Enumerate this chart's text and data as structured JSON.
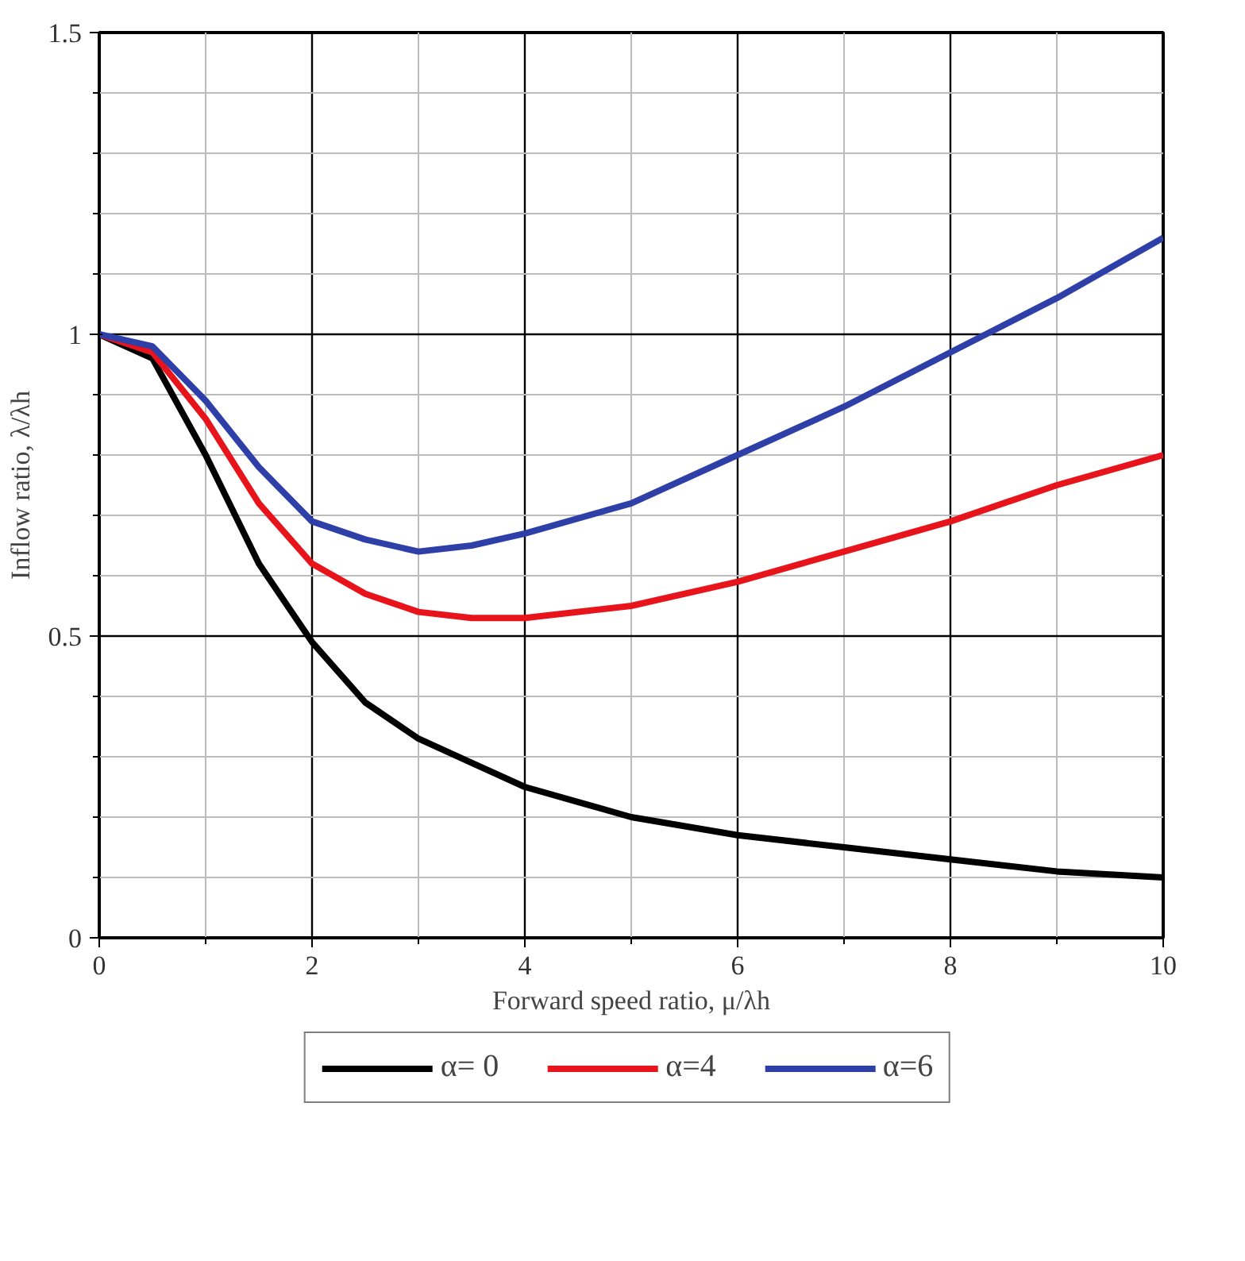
{
  "chart_data": {
    "type": "line",
    "xlabel": "Forward speed ratio, μ/λh",
    "ylabel": "Inflow ratio, λ/λh",
    "x": [
      0,
      0.5,
      1,
      1.5,
      2,
      2.5,
      3,
      3.5,
      4,
      5,
      6,
      7,
      8,
      9,
      10
    ],
    "series": [
      {
        "name": "α= 0",
        "color": "#000000",
        "values": [
          1.0,
          0.96,
          0.8,
          0.62,
          0.49,
          0.39,
          0.33,
          0.29,
          0.25,
          0.2,
          0.17,
          0.15,
          0.13,
          0.11,
          0.1
        ]
      },
      {
        "name": "α=4",
        "color": "#e8141c",
        "values": [
          1.0,
          0.97,
          0.86,
          0.72,
          0.62,
          0.57,
          0.54,
          0.53,
          0.53,
          0.55,
          0.59,
          0.64,
          0.69,
          0.75,
          0.8
        ]
      },
      {
        "name": "α=6",
        "color": "#2e3fa8",
        "values": [
          1.0,
          0.98,
          0.89,
          0.78,
          0.69,
          0.66,
          0.64,
          0.65,
          0.67,
          0.72,
          0.8,
          0.88,
          0.97,
          1.06,
          1.16
        ]
      }
    ],
    "xlim": [
      0,
      10
    ],
    "xticks": [
      0,
      {
        "value": 1,
        "label": null
      },
      2,
      {
        "value": 3,
        "label": null
      },
      4,
      {
        "value": 5,
        "label": null
      },
      6,
      {
        "value": 7,
        "label": null
      },
      8,
      {
        "value": 9,
        "label": null
      },
      10
    ],
    "ylim": [
      0,
      1.5
    ],
    "yticks": [
      0,
      {
        "value": 0.1,
        "label": null
      },
      {
        "value": 0.2,
        "label": null
      },
      {
        "value": 0.3,
        "label": null
      },
      {
        "value": 0.4,
        "label": null
      },
      0.5,
      {
        "value": 0.6,
        "label": null
      },
      {
        "value": 0.7,
        "label": null
      },
      {
        "value": 0.8,
        "label": null
      },
      {
        "value": 0.9,
        "label": null
      },
      1,
      {
        "value": 1.1,
        "label": null
      },
      {
        "value": 1.2,
        "label": null
      },
      {
        "value": 1.3,
        "label": null
      },
      {
        "value": 1.4,
        "label": null
      },
      1.5
    ],
    "grid": true,
    "legend": "bottom",
    "line_style": "solid",
    "marker": "none"
  }
}
